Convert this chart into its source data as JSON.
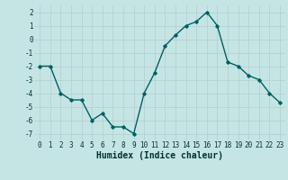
{
  "x": [
    0,
    1,
    2,
    3,
    4,
    5,
    6,
    7,
    8,
    9,
    10,
    11,
    12,
    13,
    14,
    15,
    16,
    17,
    18,
    19,
    20,
    21,
    22,
    23
  ],
  "y": [
    -2,
    -2,
    -4,
    -4.5,
    -4.5,
    -6,
    -5.5,
    -6.5,
    -6.5,
    -7,
    -4,
    -2.5,
    -0.5,
    0.3,
    1.0,
    1.3,
    2.0,
    1.0,
    -1.7,
    -2.0,
    -2.7,
    -3.0,
    -4.0,
    -4.7
  ],
  "line_color": "#006060",
  "marker": "D",
  "marker_size": 1.8,
  "line_width": 1.0,
  "xlabel": "Humidex (Indice chaleur)",
  "xlabel_fontsize": 7,
  "xlabel_fontweight": "bold",
  "xlabel_color": "#003030",
  "ylim": [
    -7.5,
    2.5
  ],
  "xlim": [
    -0.5,
    23.5
  ],
  "yticks": [
    -7,
    -6,
    -5,
    -4,
    -3,
    -2,
    -1,
    0,
    1,
    2
  ],
  "xticks": [
    0,
    1,
    2,
    3,
    4,
    5,
    6,
    7,
    8,
    9,
    10,
    11,
    12,
    13,
    14,
    15,
    16,
    17,
    18,
    19,
    20,
    21,
    22,
    23
  ],
  "grid_color": "#b0cece",
  "bg_color": "#c5e5e5",
  "tick_label_fontsize": 5.5,
  "tick_color": "#003030"
}
